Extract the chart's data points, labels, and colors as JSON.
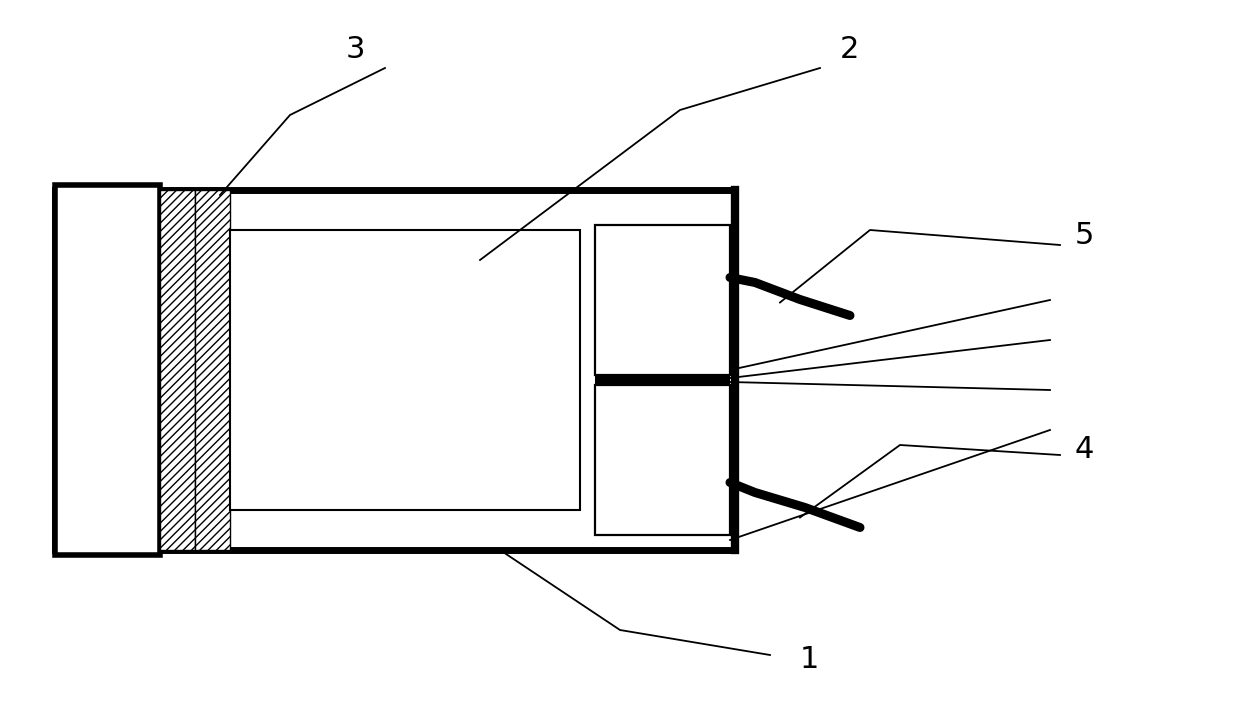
{
  "fig_width": 12.4,
  "fig_height": 7.09,
  "bg_color": "#ffffff",
  "line_color": "#000000",
  "thick_lw": 4.0,
  "thin_lw": 1.3,
  "label_fontsize": 22
}
